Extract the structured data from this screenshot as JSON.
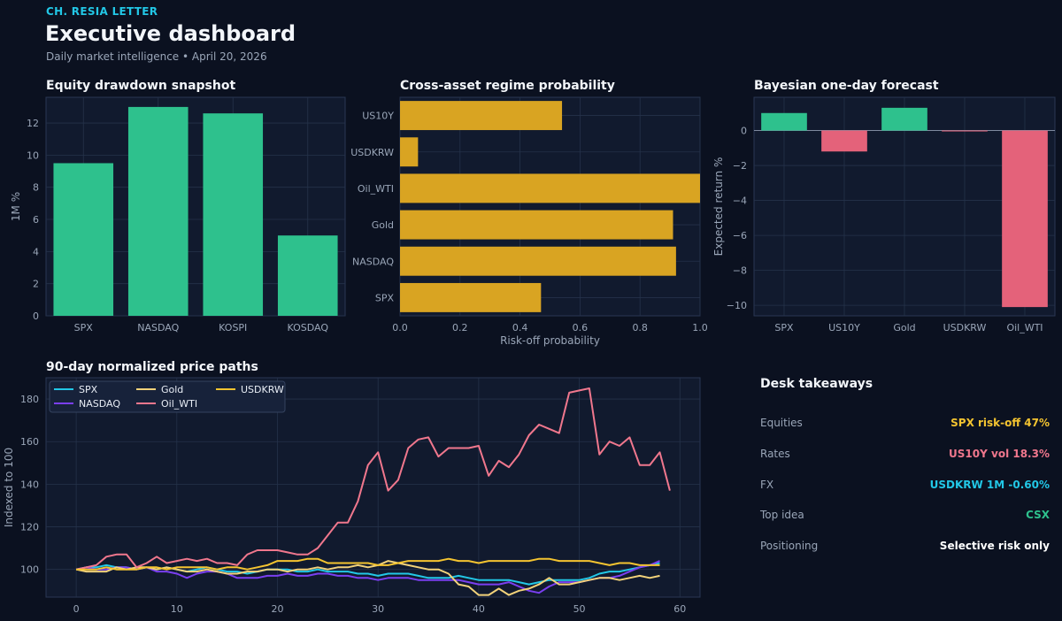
{
  "header": {
    "brand": "CH. RESIA LETTER",
    "title": "Executive dashboard",
    "subtitle": "Daily market intelligence • April 20, 2026"
  },
  "colors": {
    "background": "#0b1120",
    "panel": "#111a2e",
    "grid": "#25324a",
    "green": "#2ec18d",
    "red": "#e4627a",
    "gold": "#d9a422",
    "text_muted": "#9aa6b8"
  },
  "chart_data": [
    {
      "id": "drawdown",
      "type": "bar",
      "title": "Equity drawdown snapshot",
      "ylabel": "1M %",
      "xlabel": "",
      "categories": [
        "SPX",
        "NASDAQ",
        "KOSPI",
        "KOSDAQ"
      ],
      "values": [
        9.5,
        13.0,
        12.6,
        5.0
      ],
      "ylim": [
        0,
        13.6
      ],
      "yticks": [
        0,
        2,
        4,
        6,
        8,
        10,
        12
      ],
      "grid": true,
      "color": "#2ec18d"
    },
    {
      "id": "regime",
      "type": "bar",
      "orientation": "horizontal",
      "title": "Cross-asset regime probability",
      "xlabel": "Risk-off probability",
      "categories": [
        "SPX",
        "NASDAQ",
        "Gold",
        "Oil_WTI",
        "USDKRW",
        "US10Y"
      ],
      "values": [
        0.47,
        0.92,
        0.91,
        1.0,
        0.06,
        0.54
      ],
      "xlim": [
        0,
        1.0
      ],
      "xticks": [
        "0.0",
        "0.2",
        "0.4",
        "0.6",
        "0.8",
        "1.0"
      ],
      "grid": true,
      "color": "#d9a422"
    },
    {
      "id": "forecast",
      "type": "bar",
      "title": "Bayesian one-day forecast",
      "ylabel": "Expected return %",
      "categories": [
        "SPX",
        "US10Y",
        "Gold",
        "USDKRW",
        "Oil_WTI"
      ],
      "values": [
        1.0,
        -1.2,
        1.3,
        -0.05,
        -10.1
      ],
      "ylim": [
        -10.6,
        1.9
      ],
      "yticks": [
        0,
        -2,
        -4,
        -6,
        -8,
        -10
      ],
      "grid": true
    },
    {
      "id": "paths",
      "type": "line",
      "title": "90-day normalized price paths",
      "ylabel": "Indexed to 100",
      "xlabel": "",
      "xlim": [
        -3,
        62
      ],
      "ylim": [
        87,
        190
      ],
      "xticks": [
        0,
        10,
        20,
        30,
        40,
        50,
        60
      ],
      "yticks": [
        100,
        120,
        140,
        160,
        180
      ],
      "legend": "top-left",
      "grid": true,
      "series": [
        {
          "name": "SPX",
          "color": "#22c7e6",
          "values": [
            100,
            101,
            101,
            102,
            101,
            101,
            100,
            101,
            100,
            101,
            100,
            99,
            100,
            101,
            100,
            99,
            99,
            98,
            99,
            100,
            100,
            100,
            99,
            99,
            100,
            99,
            99,
            99,
            98,
            98,
            97,
            98,
            98,
            98,
            97,
            96,
            96,
            96,
            97,
            96,
            95,
            95,
            95,
            95,
            94,
            93,
            94,
            95,
            95,
            95,
            95,
            96,
            98,
            99,
            99,
            100,
            101,
            102,
            103
          ]
        },
        {
          "name": "NASDAQ",
          "color": "#7a3ff0",
          "values": [
            100,
            101,
            100,
            100,
            101,
            101,
            100,
            101,
            99,
            99,
            98,
            96,
            98,
            99,
            99,
            98,
            96,
            96,
            96,
            97,
            97,
            98,
            97,
            97,
            98,
            98,
            97,
            97,
            96,
            96,
            95,
            96,
            96,
            96,
            95,
            95,
            95,
            95,
            95,
            94,
            93,
            93,
            93,
            94,
            92,
            90,
            89,
            92,
            94,
            94,
            94,
            95,
            96,
            96,
            97,
            99,
            101,
            102,
            104
          ]
        },
        {
          "name": "Gold",
          "color": "#f2d27a",
          "values": [
            100,
            99,
            99,
            99,
            101,
            100,
            101,
            101,
            100,
            101,
            100,
            99,
            99,
            100,
            99,
            98,
            98,
            99,
            99,
            100,
            100,
            99,
            100,
            100,
            101,
            100,
            101,
            101,
            102,
            101,
            102,
            104,
            103,
            102,
            101,
            100,
            100,
            98,
            93,
            92,
            88,
            88,
            91,
            88,
            90,
            91,
            93,
            96,
            93,
            93,
            94,
            95,
            96,
            96,
            95,
            96,
            97,
            96,
            97
          ]
        },
        {
          "name": "Oil_WTI",
          "color": "#f0778d",
          "values": [
            100,
            101,
            102,
            106,
            107,
            107,
            101,
            103,
            106,
            103,
            104,
            105,
            104,
            105,
            103,
            103,
            102,
            107,
            109,
            109,
            109,
            108,
            107,
            107,
            110,
            116,
            122,
            122,
            132,
            149,
            155,
            137,
            142,
            157,
            161,
            162,
            153,
            157,
            157,
            157,
            158,
            144,
            151,
            148,
            154,
            163,
            168,
            166,
            164,
            183,
            184,
            185,
            154,
            160,
            158,
            162,
            149,
            149,
            155,
            137
          ]
        },
        {
          "name": "USDKRW",
          "color": "#f4c430",
          "values": [
            100,
            100,
            100,
            101,
            100,
            100,
            100,
            101,
            101,
            100,
            101,
            101,
            101,
            101,
            100,
            101,
            101,
            100,
            101,
            102,
            104,
            104,
            104,
            105,
            105,
            103,
            103,
            103,
            103,
            103,
            102,
            102,
            103,
            104,
            104,
            104,
            104,
            105,
            104,
            104,
            103,
            104,
            104,
            104,
            104,
            104,
            105,
            105,
            104,
            104,
            104,
            104,
            103,
            102,
            103,
            103,
            102,
            102,
            102
          ]
        }
      ]
    }
  ],
  "takeaways": {
    "title": "Desk takeaways",
    "rows": [
      {
        "label": "Equities",
        "value": "SPX risk-off 47%",
        "color": "#f4c430"
      },
      {
        "label": "Rates",
        "value": "US10Y vol 18.3%",
        "color": "#f0778d"
      },
      {
        "label": "FX",
        "value": "USDKRW 1M -0.60%",
        "color": "#22c7e6"
      },
      {
        "label": "Top idea",
        "value": "CSX",
        "color": "#2ec18d"
      },
      {
        "label": "Positioning",
        "value": "Selective risk only",
        "color": "#ffffff"
      }
    ]
  }
}
